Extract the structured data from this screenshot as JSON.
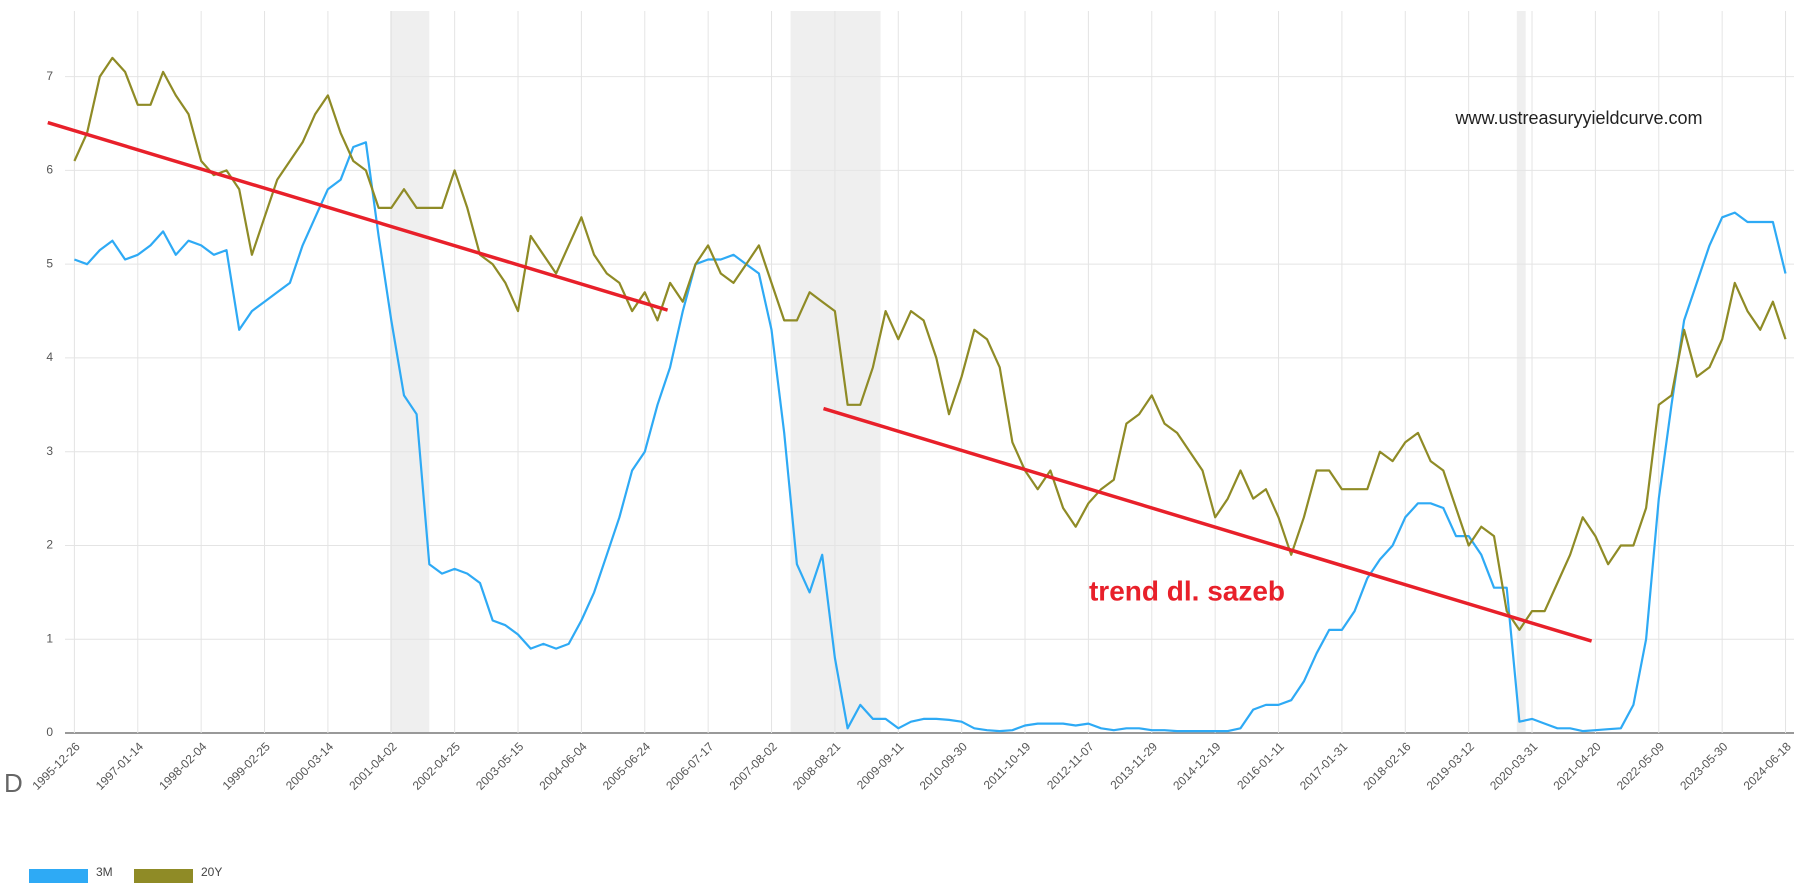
{
  "chart_data": {
    "type": "line",
    "categories": [
      "1995-12-26",
      null,
      null,
      null,
      null,
      "1997-01-14",
      null,
      null,
      null,
      null,
      "1998-02-04",
      null,
      null,
      null,
      null,
      "1999-02-25",
      null,
      null,
      null,
      null,
      "2000-03-14",
      null,
      null,
      null,
      null,
      "2001-04-02",
      null,
      null,
      null,
      null,
      "2002-04-25",
      null,
      null,
      null,
      null,
      "2003-05-15",
      null,
      null,
      null,
      null,
      "2004-06-04",
      null,
      null,
      null,
      null,
      "2005-06-24",
      null,
      null,
      null,
      null,
      "2006-07-17",
      null,
      null,
      null,
      null,
      "2007-08-02",
      null,
      null,
      null,
      null,
      "2008-08-21",
      null,
      null,
      null,
      null,
      "2009-09-11",
      null,
      null,
      null,
      null,
      "2010-09-30",
      null,
      null,
      null,
      null,
      "2011-10-19",
      null,
      null,
      null,
      null,
      "2012-11-07",
      null,
      null,
      null,
      null,
      "2013-11-29",
      null,
      null,
      null,
      null,
      "2014-12-19",
      null,
      null,
      null,
      null,
      "2016-01-11",
      null,
      null,
      null,
      null,
      "2017-01-31",
      null,
      null,
      null,
      null,
      "2018-02-16",
      null,
      null,
      null,
      null,
      "2019-03-12",
      null,
      null,
      null,
      null,
      "2020-03-31",
      null,
      null,
      null,
      null,
      "2021-04-20",
      null,
      null,
      null,
      null,
      "2022-05-09",
      null,
      null,
      null,
      null,
      "2023-05-30",
      null,
      null,
      null,
      null,
      "2024-06-18"
    ],
    "series": [
      {
        "name": "3M",
        "color": "#2eaaf5",
        "values": [
          5.05,
          5.0,
          5.15,
          5.25,
          5.05,
          5.1,
          5.2,
          5.35,
          5.1,
          5.25,
          5.2,
          5.1,
          5.15,
          4.3,
          4.5,
          4.6,
          4.7,
          4.8,
          5.2,
          5.5,
          5.8,
          5.9,
          6.25,
          6.3,
          5.3,
          4.4,
          3.6,
          3.4,
          1.8,
          1.7,
          1.75,
          1.7,
          1.6,
          1.2,
          1.15,
          1.05,
          0.9,
          0.95,
          0.9,
          0.95,
          1.2,
          1.5,
          1.9,
          2.3,
          2.8,
          3.0,
          3.5,
          3.9,
          4.5,
          5.0,
          5.05,
          5.05,
          5.1,
          5.0,
          4.9,
          4.3,
          3.2,
          1.8,
          1.5,
          1.9,
          0.8,
          0.05,
          0.3,
          0.15,
          0.15,
          0.05,
          0.12,
          0.15,
          0.15,
          0.14,
          0.12,
          0.05,
          0.03,
          0.02,
          0.03,
          0.08,
          0.1,
          0.1,
          0.1,
          0.08,
          0.1,
          0.05,
          0.03,
          0.05,
          0.05,
          0.03,
          0.03,
          0.02,
          0.02,
          0.02,
          0.02,
          0.02,
          0.05,
          0.25,
          0.3,
          0.3,
          0.35,
          0.55,
          0.85,
          1.1,
          1.1,
          1.3,
          1.65,
          1.85,
          2.0,
          2.3,
          2.45,
          2.45,
          2.4,
          2.1,
          2.1,
          1.9,
          1.55,
          1.55,
          0.12,
          0.15,
          0.1,
          0.05,
          0.05,
          0.02,
          0.03,
          0.04,
          0.05,
          0.3,
          1.0,
          2.5,
          3.5,
          4.4,
          4.8,
          5.2,
          5.5,
          5.55,
          5.45,
          5.45,
          5.45,
          4.9
        ]
      },
      {
        "name": "20Y",
        "color": "#8f8b26",
        "values": [
          6.1,
          6.4,
          7.0,
          7.2,
          7.05,
          6.7,
          6.7,
          7.05,
          6.8,
          6.6,
          6.1,
          5.95,
          6.0,
          5.8,
          5.1,
          5.5,
          5.9,
          6.1,
          6.3,
          6.6,
          6.8,
          6.4,
          6.1,
          6.0,
          5.6,
          5.6,
          5.8,
          5.6,
          5.6,
          5.6,
          6.0,
          5.6,
          5.1,
          5.0,
          4.8,
          4.5,
          5.3,
          5.1,
          4.9,
          5.2,
          5.5,
          5.1,
          4.9,
          4.8,
          4.5,
          4.7,
          4.4,
          4.8,
          4.6,
          5.0,
          5.2,
          4.9,
          4.8,
          5.0,
          5.2,
          4.8,
          4.4,
          4.4,
          4.7,
          4.6,
          4.5,
          3.5,
          3.5,
          3.9,
          4.5,
          4.2,
          4.5,
          4.4,
          4.0,
          3.4,
          3.8,
          4.3,
          4.2,
          3.9,
          3.1,
          2.8,
          2.6,
          2.8,
          2.4,
          2.2,
          2.45,
          2.6,
          2.7,
          3.3,
          3.4,
          3.6,
          3.3,
          3.2,
          3.0,
          2.8,
          2.3,
          2.5,
          2.8,
          2.5,
          2.6,
          2.3,
          1.9,
          2.3,
          2.8,
          2.8,
          2.6,
          2.6,
          2.6,
          3.0,
          2.9,
          3.1,
          3.2,
          2.9,
          2.8,
          2.4,
          2.0,
          2.2,
          2.1,
          1.3,
          1.1,
          1.3,
          1.3,
          1.6,
          1.9,
          2.3,
          2.1,
          1.8,
          2.0,
          2.0,
          2.4,
          3.5,
          3.6,
          4.3,
          3.8,
          3.9,
          4.2,
          4.8,
          4.5,
          4.3,
          4.6,
          4.2
        ]
      }
    ],
    "ylim": [
      0,
      7.7
    ],
    "yticks": [
      0,
      1,
      2,
      3,
      4,
      5,
      6,
      7
    ],
    "grid": true,
    "shaded_ranges": [
      [
        24.9,
        28.0
      ],
      [
        56.5,
        63.6
      ],
      [
        113.8,
        114.5
      ]
    ],
    "trend_lines": [
      {
        "color": "#e8202a",
        "x": [
          -2.1,
          46.8
        ],
        "values": [
          6.51,
          4.51
        ]
      },
      {
        "color": "#e8202a",
        "x": [
          59.1,
          119.7
        ],
        "values": [
          3.46,
          0.98
        ]
      }
    ],
    "annotation": "trend dl. sazeb",
    "watermark": "www.ustreasuryyieldcurve.com",
    "overlay_text": "D"
  }
}
